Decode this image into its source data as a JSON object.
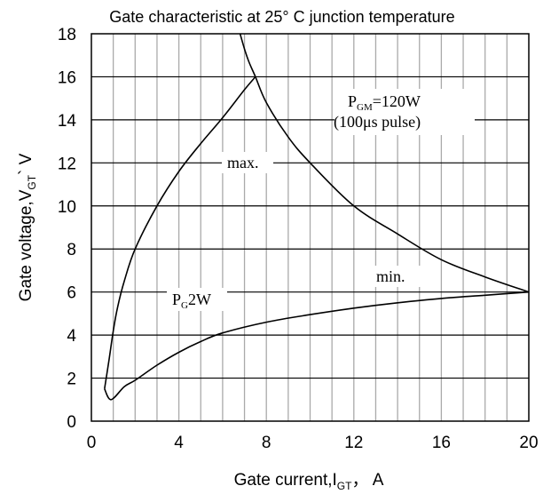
{
  "chart_data": {
    "type": "line",
    "title": "Gate characteristic at 25° C junction temperature",
    "xlabel": {
      "main": "Gate current,I",
      "sub": "GT",
      "unit": "， A"
    },
    "ylabel": {
      "main": "Gate voltage,V",
      "sub": "GT",
      "unit": "` V"
    },
    "xlim": [
      0,
      20
    ],
    "ylim": [
      0,
      18
    ],
    "xticks": [
      0,
      4,
      8,
      12,
      16,
      20
    ],
    "yticks": [
      0,
      2,
      4,
      6,
      8,
      10,
      12,
      14,
      16,
      18
    ],
    "grid": true,
    "series": [
      {
        "name": "max.",
        "x": [
          0.6,
          0.8,
          1.0,
          1.2,
          1.5,
          2.0,
          3.0,
          4.0,
          5.0,
          6.0,
          7.0,
          7.5
        ],
        "y": [
          1.5,
          2.8,
          4.2,
          5.3,
          6.5,
          8.0,
          10.0,
          11.6,
          12.9,
          14.1,
          15.4,
          16.0
        ]
      },
      {
        "name": "min.",
        "x": [
          0.6,
          0.9,
          1.5,
          2.0,
          3.0,
          4.0,
          5.0,
          6.0,
          8.0,
          10.0,
          12.0,
          14.0,
          16.0,
          18.0,
          20.0
        ],
        "y": [
          1.5,
          1.0,
          1.6,
          1.9,
          2.6,
          3.2,
          3.7,
          4.1,
          4.6,
          4.95,
          5.25,
          5.5,
          5.7,
          5.85,
          6.0
        ]
      },
      {
        "name": "P_GM",
        "x": [
          6.8,
          7.0,
          7.2,
          7.5,
          8.0,
          9.0,
          10.0,
          12.0,
          14.0,
          16.0,
          18.0,
          20.0
        ],
        "y": [
          18.0,
          17.3,
          16.7,
          16.0,
          14.8,
          13.2,
          12.0,
          10.0,
          8.7,
          7.5,
          6.7,
          6.0
        ]
      }
    ],
    "annotations": [
      {
        "main": "P",
        "sub": "GM",
        "rest": "=120W"
      },
      {
        "text": "(100μs pulse)"
      },
      {
        "text": "max."
      },
      {
        "text": "min."
      },
      {
        "main": "P",
        "sub": "G",
        "rest": "2W"
      }
    ],
    "colors": {
      "line": "#000000",
      "grid": "#aaaaaa",
      "axis": "#000000",
      "background": "#ffffff"
    }
  }
}
